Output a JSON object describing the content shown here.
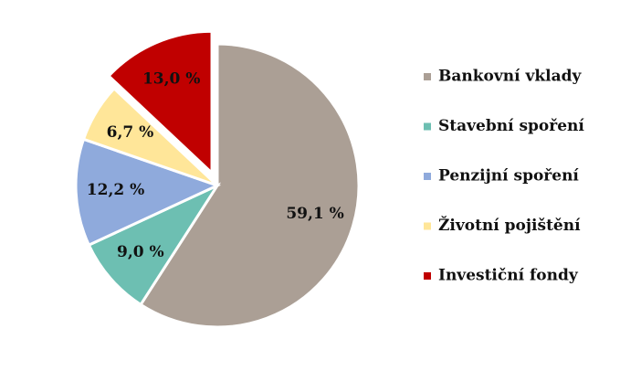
{
  "chart_data": {
    "type": "pie",
    "categories": [
      "Bankovní vklady",
      "Stavební spoření",
      "Penzijní spoření",
      "Životní pojištění",
      "Investiční fondy"
    ],
    "values": [
      59.1,
      9.0,
      12.2,
      6.7,
      13.0
    ],
    "value_labels": [
      "59,1 %",
      "9,0 %",
      "12,2 %",
      "6,7 %",
      "13,0 %"
    ],
    "colors": [
      "#ab9f95",
      "#6dbfb2",
      "#8faadc",
      "#ffe699",
      "#c00000"
    ],
    "exploded": [
      false,
      false,
      false,
      false,
      true
    ],
    "legend": "right"
  }
}
